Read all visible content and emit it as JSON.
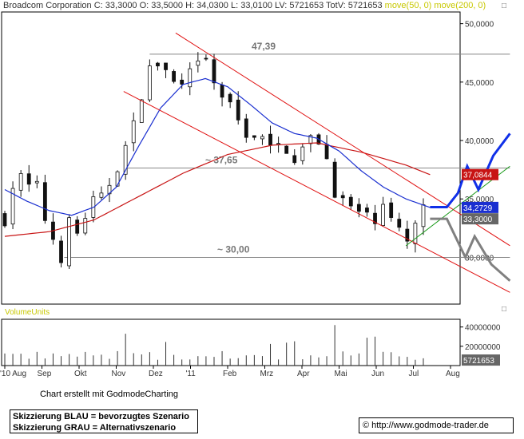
{
  "header": {
    "name": "Broadcom Corporation",
    "ohlc": "C: 33,3000  O: 33,5000  H: 34,0300  L: 33,0100  LV: 5721653  TotV: 5721653",
    "ma_label": "move(50, 0)  move(200, 0)"
  },
  "credit": "Chart erstellt mit GodmodeCharting",
  "legend": {
    "blue": "Skizzierung BLAU = bevorzugtes Szenario",
    "grey": "Skizzierung GRAU = Alternativszenario"
  },
  "url": "© http://www.godmode-trader.de",
  "volume_label": "VolumeUnits",
  "colors": {
    "candle": "#111111",
    "ma50": "#1a2fd0",
    "ma200": "#c81414",
    "channel": "#e01010",
    "trend": "#1a9a1a",
    "scenario_blue": "#1030e8",
    "scenario_grey": "#808080",
    "grid": "#888888"
  },
  "chart_data": {
    "type": "candlestick",
    "y_ticks": [
      "50,0000",
      "45,0000",
      "40,0000",
      "35,0000",
      "30,0000"
    ],
    "y_tick_values": [
      50,
      45,
      40,
      35,
      30
    ],
    "ylim": [
      26,
      51
    ],
    "x_ticks": [
      "'10 Aug",
      "Sep",
      "Okt",
      "Nov",
      "Dez",
      "'11",
      "Feb",
      "Mrz",
      "Apr",
      "Mai",
      "Jun",
      "Jul",
      "Aug"
    ],
    "x_tick_months": [
      0,
      1,
      2,
      3,
      4,
      5,
      6,
      7,
      8,
      9,
      10,
      11,
      12
    ],
    "levels": [
      {
        "value": 47.39,
        "label": "47,39",
        "from_month": 3.9,
        "to_month": 13.6
      },
      {
        "value": 37.65,
        "label": "~ 37,65",
        "from_month": 3.3,
        "to_month": 13.6
      },
      {
        "value": 30.0,
        "label": "~ 30,00",
        "from_month": 1.6,
        "to_month": 13.6
      }
    ],
    "price_labels": [
      {
        "value": 37.0844,
        "text": "37,0844",
        "color": "#c81414"
      },
      {
        "value": 34.2729,
        "text": "34,2729",
        "color": "#1a2fd0"
      },
      {
        "value": 33.3,
        "text": "33,3000",
        "color": "#666666"
      }
    ],
    "close_anchors": [
      [
        0.0,
        33.5
      ],
      [
        0.3,
        37.2
      ],
      [
        0.6,
        36.0
      ],
      [
        0.9,
        35.8
      ],
      [
        1.2,
        31.8
      ],
      [
        1.4,
        31.5
      ],
      [
        1.55,
        29.9
      ],
      [
        1.75,
        33.0
      ],
      [
        2.0,
        31.8
      ],
      [
        2.25,
        34.5
      ],
      [
        2.6,
        34.8
      ],
      [
        3.0,
        37.8
      ],
      [
        3.2,
        39.0
      ],
      [
        3.45,
        40.8
      ],
      [
        3.65,
        44.0
      ],
      [
        3.9,
        46.0
      ],
      [
        4.2,
        46.8
      ],
      [
        4.45,
        45.0
      ],
      [
        4.75,
        44.3
      ],
      [
        5.05,
        45.8
      ],
      [
        5.4,
        46.8
      ],
      [
        5.6,
        45.0
      ],
      [
        5.9,
        43.6
      ],
      [
        6.2,
        42.0
      ],
      [
        6.5,
        40.8
      ],
      [
        6.85,
        40.3
      ],
      [
        7.2,
        39.0
      ],
      [
        7.55,
        39.7
      ],
      [
        7.85,
        38.5
      ],
      [
        8.2,
        39.9
      ],
      [
        8.5,
        40.2
      ],
      [
        8.7,
        38.0
      ],
      [
        8.95,
        35.2
      ],
      [
        9.2,
        34.3
      ],
      [
        9.5,
        33.9
      ],
      [
        9.65,
        33.6
      ],
      [
        9.9,
        32.9
      ],
      [
        10.15,
        35.3
      ],
      [
        10.4,
        33.2
      ],
      [
        10.65,
        31.8
      ],
      [
        10.85,
        31.2
      ],
      [
        11.05,
        32.3
      ],
      [
        11.25,
        34.8
      ],
      [
        11.45,
        33.3
      ]
    ],
    "ma50_anchors": [
      [
        0.0,
        35.8
      ],
      [
        0.6,
        34.8
      ],
      [
        1.2,
        34.0
      ],
      [
        1.8,
        33.6
      ],
      [
        2.4,
        34.3
      ],
      [
        3.0,
        36.0
      ],
      [
        3.6,
        39.5
      ],
      [
        4.2,
        42.8
      ],
      [
        4.8,
        44.8
      ],
      [
        5.4,
        45.3
      ],
      [
        6.0,
        44.6
      ],
      [
        6.6,
        43.1
      ],
      [
        7.2,
        41.5
      ],
      [
        7.8,
        40.6
      ],
      [
        8.4,
        40.2
      ],
      [
        9.0,
        39.1
      ],
      [
        9.6,
        37.4
      ],
      [
        10.2,
        36.0
      ],
      [
        10.8,
        35.0
      ],
      [
        11.45,
        34.27
      ]
    ],
    "ma200_anchors": [
      [
        0.0,
        31.8
      ],
      [
        1.2,
        32.2
      ],
      [
        2.4,
        33.2
      ],
      [
        3.6,
        35.2
      ],
      [
        4.8,
        37.2
      ],
      [
        6.0,
        38.8
      ],
      [
        7.2,
        39.6
      ],
      [
        8.4,
        39.8
      ],
      [
        9.6,
        39.0
      ],
      [
        10.8,
        37.9
      ],
      [
        11.45,
        37.08
      ]
    ],
    "channel_upper": [
      [
        4.6,
        49.2
      ],
      [
        13.6,
        31.0
      ]
    ],
    "channel_lower": [
      [
        3.2,
        44.2
      ],
      [
        13.6,
        27.0
      ]
    ],
    "trendline": [
      [
        10.8,
        31.0
      ],
      [
        13.6,
        37.8
      ]
    ],
    "scenario_blue": [
      [
        11.45,
        34.3
      ],
      [
        11.9,
        34.3
      ],
      [
        12.2,
        35.5
      ],
      [
        12.45,
        37.8
      ],
      [
        12.75,
        35.8
      ],
      [
        13.15,
        38.7
      ],
      [
        13.6,
        40.6
      ]
    ],
    "scenario_grey": [
      [
        11.45,
        33.3
      ],
      [
        11.9,
        33.3
      ],
      [
        12.4,
        30.0
      ],
      [
        12.65,
        31.8
      ],
      [
        13.1,
        29.4
      ],
      [
        13.6,
        28.0
      ]
    ],
    "volume_ticks": [
      "40000000",
      "20000000"
    ],
    "volume_tick_values": [
      40000000,
      20000000
    ],
    "volume_last": "5721653",
    "volume_last_value": 5721653,
    "volume_ylim": [
      0,
      48000000
    ]
  }
}
